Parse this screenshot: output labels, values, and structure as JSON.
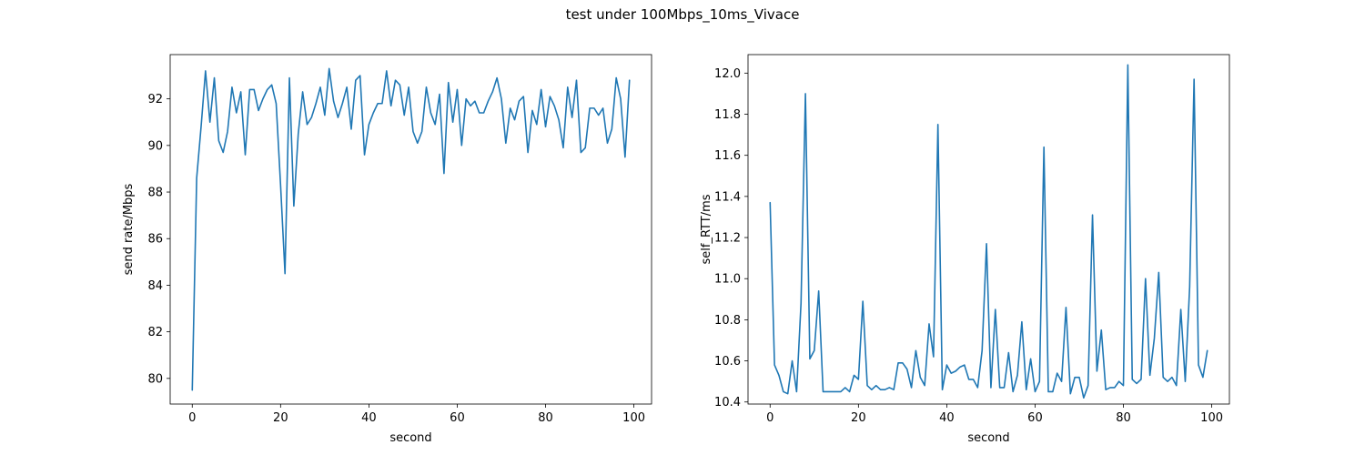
{
  "figure": {
    "suptitle": "test under 100Mbps_10ms_Vivace"
  },
  "chart_data": [
    {
      "type": "line",
      "xlabel": "second",
      "ylabel": "send rate/Mbps",
      "xlim": [
        -5,
        104
      ],
      "ylim": [
        78.9,
        93.9
      ],
      "xticks": [
        0,
        20,
        40,
        60,
        80,
        100
      ],
      "yticks": [
        80,
        82,
        84,
        86,
        88,
        90,
        92
      ],
      "color": "#1f77b4",
      "grid": false,
      "x": [
        0,
        1,
        2,
        3,
        4,
        5,
        6,
        7,
        8,
        9,
        10,
        11,
        12,
        13,
        14,
        15,
        16,
        17,
        18,
        19,
        20,
        21,
        22,
        23,
        24,
        25,
        26,
        27,
        28,
        29,
        30,
        31,
        32,
        33,
        34,
        35,
        36,
        37,
        38,
        39,
        40,
        41,
        42,
        43,
        44,
        45,
        46,
        47,
        48,
        49,
        50,
        51,
        52,
        53,
        54,
        55,
        56,
        57,
        58,
        59,
        60,
        61,
        62,
        63,
        64,
        65,
        66,
        67,
        68,
        69,
        70,
        71,
        72,
        73,
        74,
        75,
        76,
        77,
        78,
        79,
        80,
        81,
        82,
        83,
        84,
        85,
        86,
        87,
        88,
        89,
        90,
        91,
        92,
        93,
        94,
        95,
        96,
        97,
        98,
        99
      ],
      "y": [
        79.5,
        88.6,
        90.8,
        93.2,
        91.0,
        92.9,
        90.2,
        89.7,
        90.6,
        92.5,
        91.4,
        92.3,
        89.6,
        92.4,
        92.4,
        91.5,
        92.0,
        92.4,
        92.6,
        91.8,
        88.3,
        84.5,
        92.9,
        87.4,
        90.5,
        92.3,
        90.9,
        91.2,
        91.8,
        92.5,
        91.3,
        93.3,
        91.9,
        91.2,
        91.8,
        92.5,
        90.7,
        92.8,
        93.0,
        89.6,
        90.9,
        91.4,
        91.8,
        91.8,
        93.2,
        91.7,
        92.8,
        92.6,
        91.3,
        92.5,
        90.6,
        90.1,
        90.6,
        92.5,
        91.4,
        90.9,
        92.2,
        88.8,
        92.7,
        91.0,
        92.4,
        90.0,
        92.0,
        91.7,
        91.9,
        91.4,
        91.4,
        91.9,
        92.3,
        92.9,
        92.0,
        90.1,
        91.6,
        91.1,
        91.9,
        92.1,
        89.7,
        91.5,
        90.9,
        92.4,
        90.8,
        92.1,
        91.7,
        91.1,
        89.9,
        92.5,
        91.2,
        92.8,
        89.7,
        89.9,
        91.6,
        91.6,
        91.3,
        91.6,
        90.1,
        90.7,
        92.9,
        92.0,
        89.5,
        92.8
      ]
    },
    {
      "type": "line",
      "xlabel": "second",
      "ylabel": "self_RTT/ms",
      "xlim": [
        -5,
        104
      ],
      "ylim": [
        10.39,
        12.09
      ],
      "xticks": [
        0,
        20,
        40,
        60,
        80,
        100
      ],
      "yticks": [
        10.4,
        10.6,
        10.8,
        11.0,
        11.2,
        11.4,
        11.6,
        11.8,
        12.0
      ],
      "color": "#1f77b4",
      "grid": false,
      "x": [
        0,
        1,
        2,
        3,
        4,
        5,
        6,
        7,
        8,
        9,
        10,
        11,
        12,
        13,
        14,
        15,
        16,
        17,
        18,
        19,
        20,
        21,
        22,
        23,
        24,
        25,
        26,
        27,
        28,
        29,
        30,
        31,
        32,
        33,
        34,
        35,
        36,
        37,
        38,
        39,
        40,
        41,
        42,
        43,
        44,
        45,
        46,
        47,
        48,
        49,
        50,
        51,
        52,
        53,
        54,
        55,
        56,
        57,
        58,
        59,
        60,
        61,
        62,
        63,
        64,
        65,
        66,
        67,
        68,
        69,
        70,
        71,
        72,
        73,
        74,
        75,
        76,
        77,
        78,
        79,
        80,
        81,
        82,
        83,
        84,
        85,
        86,
        87,
        88,
        89,
        90,
        91,
        92,
        93,
        94,
        95,
        96,
        97,
        98,
        99
      ],
      "y": [
        11.37,
        10.58,
        10.53,
        10.45,
        10.44,
        10.6,
        10.45,
        10.88,
        11.9,
        10.61,
        10.65,
        10.94,
        10.45,
        10.45,
        10.45,
        10.45,
        10.45,
        10.47,
        10.45,
        10.53,
        10.51,
        10.89,
        10.48,
        10.46,
        10.48,
        10.46,
        10.46,
        10.47,
        10.46,
        10.59,
        10.59,
        10.56,
        10.47,
        10.65,
        10.52,
        10.48,
        10.78,
        10.62,
        11.75,
        10.46,
        10.58,
        10.54,
        10.55,
        10.57,
        10.58,
        10.51,
        10.51,
        10.47,
        10.65,
        11.17,
        10.47,
        10.85,
        10.47,
        10.47,
        10.64,
        10.45,
        10.53,
        10.79,
        10.46,
        10.61,
        10.45,
        10.5,
        11.64,
        10.45,
        10.45,
        10.54,
        10.5,
        10.86,
        10.44,
        10.52,
        10.52,
        10.42,
        10.48,
        11.31,
        10.55,
        10.75,
        10.46,
        10.47,
        10.47,
        10.5,
        10.48,
        12.04,
        10.51,
        10.49,
        10.51,
        11.0,
        10.53,
        10.71,
        11.03,
        10.52,
        10.5,
        10.52,
        10.48,
        10.85,
        10.5,
        10.96,
        11.97,
        10.58,
        10.52,
        10.65
      ]
    }
  ]
}
